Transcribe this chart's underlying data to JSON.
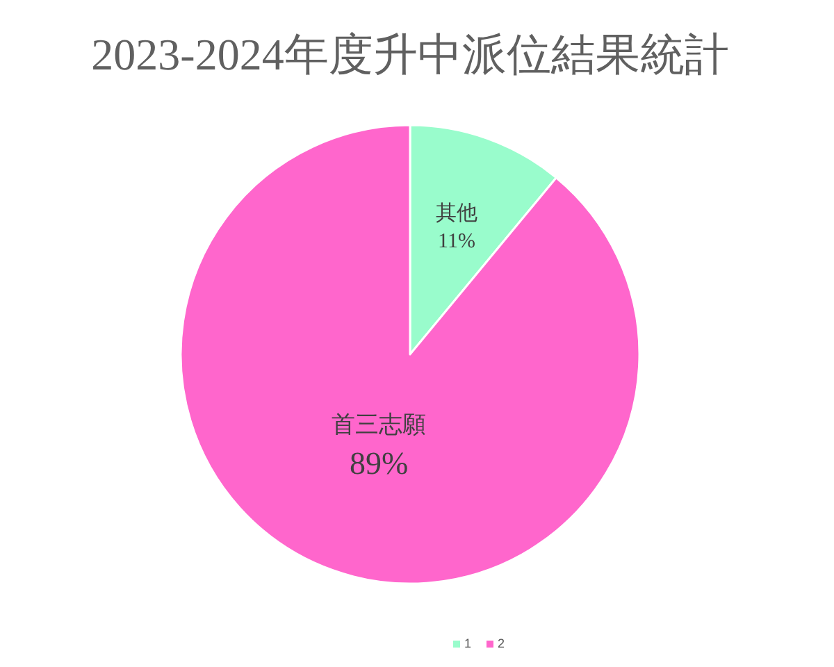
{
  "chart_data": {
    "type": "pie",
    "title": "2023-2024年度升中派位結果統計",
    "categories": [
      "1",
      "2"
    ],
    "values": [
      11,
      89
    ],
    "colors": [
      "#99fccc",
      "#ff66cc"
    ],
    "value_labels": [
      "11%",
      "89%"
    ],
    "annotations": [
      "其他",
      "首三志願"
    ],
    "legend": "bottom"
  }
}
